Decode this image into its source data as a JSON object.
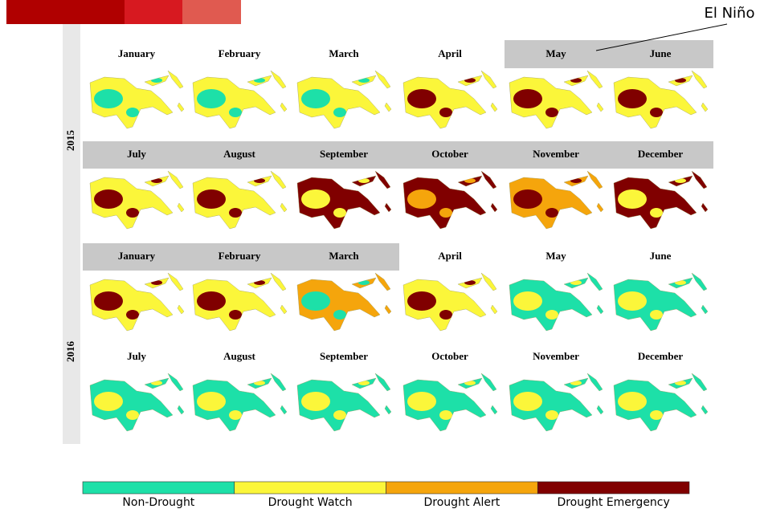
{
  "annotation": "El Niño",
  "years": [
    {
      "label": "2015",
      "months": [
        "January",
        "February",
        "March",
        "April",
        "May",
        "June",
        "July",
        "August",
        "September",
        "October",
        "November",
        "December"
      ]
    },
    {
      "label": "2016",
      "months": [
        "January",
        "February",
        "March",
        "April",
        "May",
        "June",
        "July",
        "August",
        "September",
        "October",
        "November",
        "December"
      ]
    }
  ],
  "legend": [
    {
      "label": "Non-Drought",
      "color": "#1de0a8"
    },
    {
      "label": "Drought Watch",
      "color": "#fbf63a"
    },
    {
      "label": "Drought Alert",
      "color": "#f5a50c"
    },
    {
      "label": "Drought Emergency",
      "color": "#800000"
    }
  ]
}
